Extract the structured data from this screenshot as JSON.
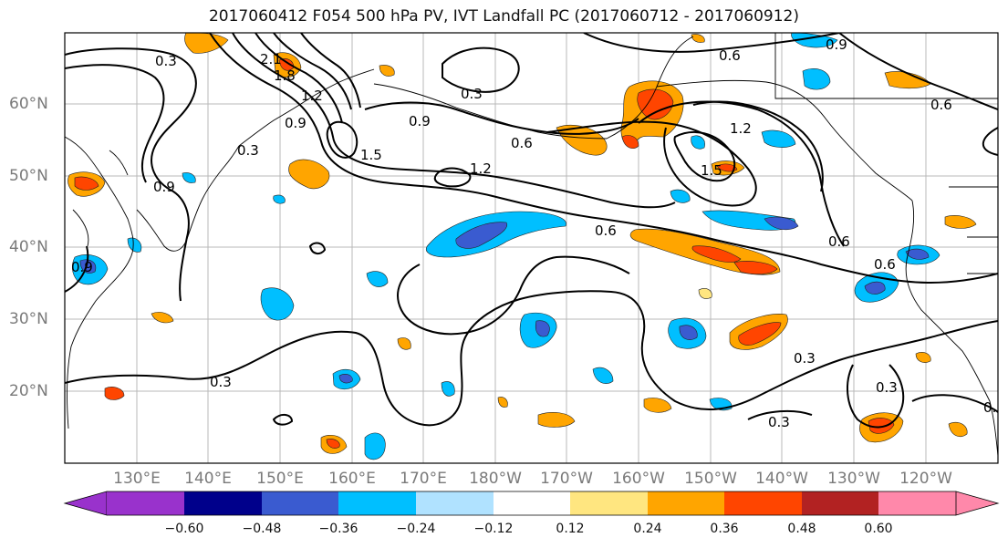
{
  "title": "2017060412 F054 500 hPa PV, IVT Landfall PC (2017060712 - 2017060912)",
  "lat_labels": [
    "60°N",
    "50°N",
    "40°N",
    "30°N",
    "20°N"
  ],
  "lon_labels": [
    "130°E",
    "140°E",
    "150°E",
    "160°E",
    "170°E",
    "180°W",
    "170°W",
    "160°W",
    "150°W",
    "140°W",
    "130°W",
    "120°W"
  ],
  "contour_labels": [
    "0.3",
    "0.6",
    "0.9",
    "1.2",
    "1.5",
    "1.8",
    "2.1"
  ],
  "colorbar": {
    "tick_labels": [
      "−0.60",
      "−0.48",
      "−0.36",
      "−0.24",
      "−0.12",
      "0.12",
      "0.24",
      "0.36",
      "0.48",
      "0.60"
    ],
    "colors": [
      "#9932cc",
      "#00008b",
      "#3a5bd0",
      "#00bfff",
      "#b0e2ff",
      "#ffffff",
      "#ffe680",
      "#ffa500",
      "#ff4500",
      "#b22222",
      "#ff88aa"
    ]
  },
  "shading_colors": {
    "neg_strong": "#3a5bd0",
    "neg_mid": "#00bfff",
    "neg_weak": "#b0e2ff",
    "pos_weak": "#ffe680",
    "pos_mid": "#ffa500",
    "pos_strong": "#ff4500"
  }
}
